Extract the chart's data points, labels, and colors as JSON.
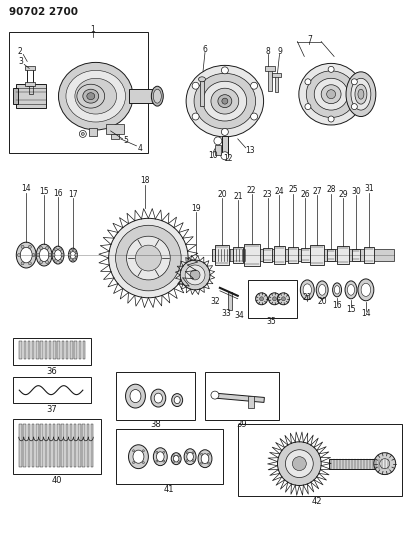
{
  "title": "90702 2700",
  "bg_color": "#ffffff",
  "fg_color": "#1a1a1a",
  "figsize": [
    4.07,
    5.33
  ],
  "dpi": 100,
  "lw": 0.7
}
